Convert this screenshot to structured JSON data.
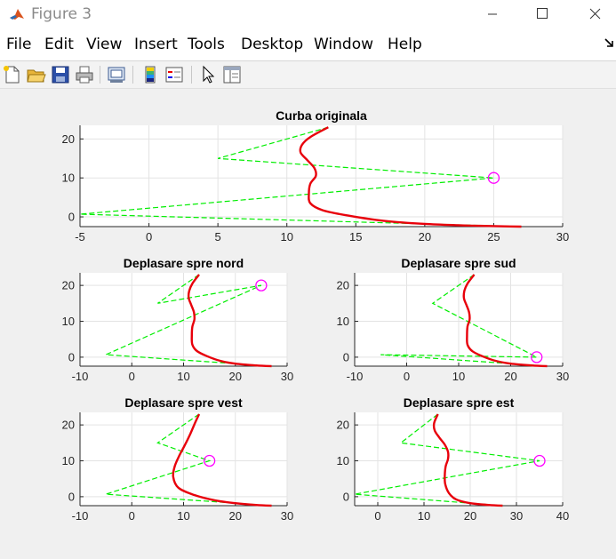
{
  "window": {
    "title": "Figure 3",
    "icon": "matlab-icon"
  },
  "menu": [
    "File",
    "Edit",
    "View",
    "Insert",
    "Tools",
    "Desktop",
    "Window",
    "Help"
  ],
  "toolbar": [
    "new-figure-icon",
    "open-file-icon",
    "save-icon",
    "print-icon",
    "print-preview-icon",
    "colorbar-icon",
    "legend-icon",
    "pointer-icon",
    "property-editor-icon"
  ],
  "colors": {
    "curve": "#e8000b",
    "path": "#00ee00",
    "marker": "#ff00ff"
  },
  "chart_data": [
    {
      "type": "line",
      "title": "Curba originala",
      "xlim": [
        -5,
        30
      ],
      "ylim": [
        -2.5,
        23.5
      ],
      "xticks": [
        -5,
        0,
        5,
        10,
        15,
        20,
        25,
        30
      ],
      "yticks": [
        0,
        10,
        20
      ],
      "grid": true,
      "curve": {
        "x": [
          27,
          24,
          20,
          17,
          14.5,
          12.6,
          11.7,
          11.6,
          11.7,
          12.1,
          12.0,
          11.5,
          11.0,
          11.1,
          11.7,
          13.0
        ],
        "y": [
          -2.5,
          -2.3,
          -1.8,
          -1.0,
          0.3,
          1.7,
          3.5,
          6.0,
          8.5,
          10.5,
          12.5,
          14.5,
          16.5,
          18.5,
          20.5,
          23.0
        ]
      },
      "path": {
        "x": [
          13.0,
          5.0,
          25.0,
          -5.0,
          27.0
        ],
        "y": [
          23.0,
          15.0,
          10.0,
          0.7,
          -2.5
        ]
      },
      "marker": {
        "x": 25.0,
        "y": 10.0
      }
    },
    {
      "type": "line",
      "title": "Deplasare spre nord",
      "xlim": [
        -10,
        30
      ],
      "ylim": [
        -2.5,
        23.5
      ],
      "xticks": [
        -10,
        0,
        10,
        20,
        30
      ],
      "yticks": [
        0,
        10,
        20
      ],
      "grid": true,
      "curve": {
        "x": [
          27,
          24,
          20,
          17,
          14.5,
          12.6,
          11.7,
          11.6,
          11.7,
          12.1,
          12.0,
          11.5,
          11.0,
          11.1,
          11.7,
          13.0
        ],
        "y": [
          -2.5,
          -2.3,
          -1.8,
          -1.0,
          0.3,
          1.7,
          3.5,
          6.0,
          8.5,
          10.5,
          12.5,
          14.5,
          16.5,
          18.5,
          20.5,
          23.0
        ]
      },
      "path": {
        "x": [
          13.0,
          5.0,
          25.0,
          -5.0,
          27.0
        ],
        "y": [
          23.0,
          15.0,
          20.0,
          0.7,
          -2.5
        ]
      },
      "marker": {
        "x": 25.0,
        "y": 20.0
      }
    },
    {
      "type": "line",
      "title": "Deplasare spre sud",
      "xlim": [
        -10,
        30
      ],
      "ylim": [
        -2.5,
        23.5
      ],
      "xticks": [
        -10,
        0,
        10,
        20,
        30
      ],
      "yticks": [
        0,
        10,
        20
      ],
      "grid": true,
      "curve": {
        "x": [
          27,
          24,
          20,
          17,
          14.5,
          12.6,
          11.7,
          11.6,
          11.7,
          12.1,
          12.0,
          11.5,
          11.0,
          11.1,
          11.7,
          13.0
        ],
        "y": [
          -2.5,
          -2.3,
          -1.8,
          -1.0,
          0.3,
          1.7,
          3.5,
          6.0,
          8.5,
          10.5,
          12.5,
          14.5,
          16.5,
          18.5,
          20.5,
          23.0
        ]
      },
      "path": {
        "x": [
          13.0,
          5.0,
          25.0,
          -5.0,
          27.0
        ],
        "y": [
          23.0,
          15.0,
          0.0,
          0.7,
          -2.5
        ]
      },
      "marker": {
        "x": 25.0,
        "y": 0.0
      }
    },
    {
      "type": "line",
      "title": "Deplasare spre vest",
      "xlim": [
        -10,
        30
      ],
      "ylim": [
        -2.5,
        23.5
      ],
      "xticks": [
        -10,
        0,
        10,
        20,
        30
      ],
      "yticks": [
        0,
        10,
        20
      ],
      "grid": true,
      "curve": {
        "x": [
          27,
          24,
          20,
          16,
          12,
          9,
          8,
          8.3,
          9.2,
          10.3,
          11.3,
          12.2,
          13.0
        ],
        "y": [
          -2.5,
          -2.3,
          -1.8,
          -1.0,
          0.5,
          2.5,
          5.5,
          8.5,
          11.5,
          14.5,
          17.5,
          20.5,
          23.0
        ]
      },
      "path": {
        "x": [
          13.0,
          5.0,
          15.0,
          -5.0,
          27.0
        ],
        "y": [
          23.0,
          15.0,
          10.0,
          0.7,
          -2.5
        ]
      },
      "marker": {
        "x": 15.0,
        "y": 10.0
      }
    },
    {
      "type": "line",
      "title": "Deplasare spre est",
      "xlim": [
        -5,
        40
      ],
      "ylim": [
        -2.5,
        23.5
      ],
      "xticks": [
        0,
        10,
        20,
        30,
        40
      ],
      "yticks": [
        0,
        10,
        20
      ],
      "grid": true,
      "curve": {
        "x": [
          27,
          24,
          20,
          17,
          15.4,
          14.6,
          14.5,
          14.7,
          15.2,
          15.2,
          14.5,
          13.3,
          12.3,
          12.2,
          13.0
        ],
        "y": [
          -2.5,
          -2.3,
          -1.8,
          -0.8,
          1.0,
          3.5,
          6.0,
          8.5,
          10.5,
          12.5,
          14.5,
          16.5,
          18.5,
          20.5,
          23.0
        ]
      },
      "path": {
        "x": [
          13.0,
          5.0,
          35.0,
          -5.0,
          27.0
        ],
        "y": [
          23.0,
          15.0,
          10.0,
          0.7,
          -2.5
        ]
      },
      "marker": {
        "x": 35.0,
        "y": 10.0
      }
    }
  ]
}
